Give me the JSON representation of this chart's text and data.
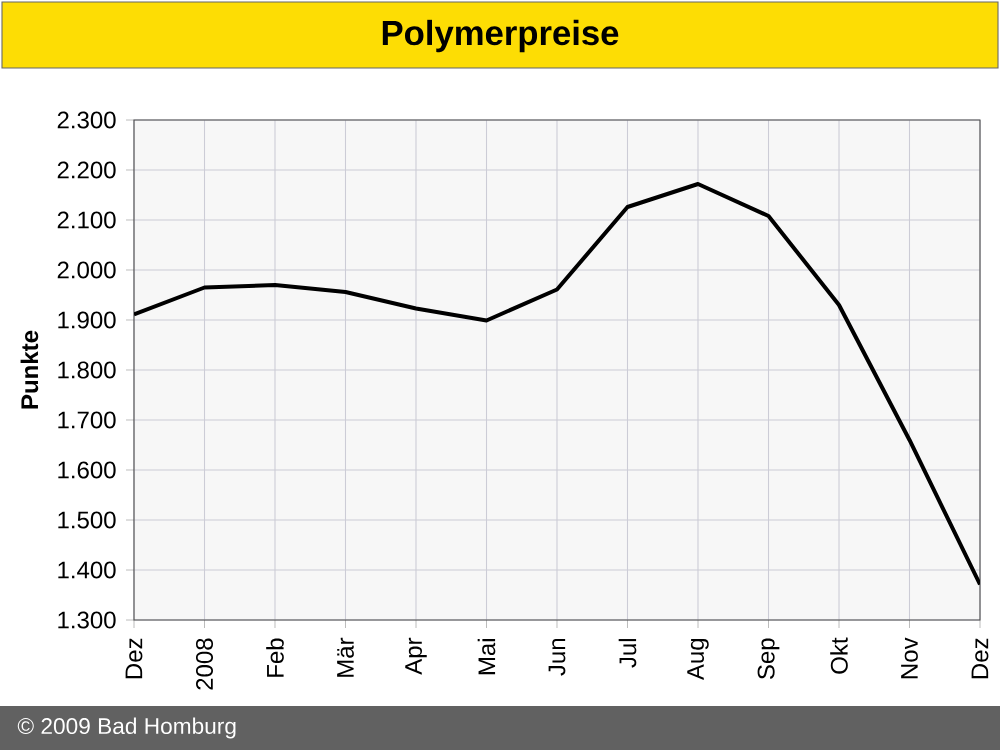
{
  "chart_data": {
    "type": "line",
    "title": "Polymerpreise",
    "ylabel": "Punkte",
    "categories": [
      "Dez",
      "2008",
      "Feb",
      "Mär",
      "Apr",
      "Mai",
      "Jun",
      "Jul",
      "Aug",
      "Sep",
      "Okt",
      "Nov",
      "Dez"
    ],
    "series": [
      {
        "color": "#000000",
        "values": [
          1911,
          1965,
          1970,
          1956,
          1923,
          1899,
          1961,
          2126,
          2172,
          2108,
          1930,
          1660,
          1371
        ]
      }
    ],
    "ylim": [
      1300,
      2300
    ],
    "yticks": [
      {
        "value": 1300,
        "label": "1.300"
      },
      {
        "value": 1400,
        "label": "1.400"
      },
      {
        "value": 1500,
        "label": "1.500"
      },
      {
        "value": 1600,
        "label": "1.600"
      },
      {
        "value": 1700,
        "label": "1.700"
      },
      {
        "value": 1800,
        "label": "1.800"
      },
      {
        "value": 1900,
        "label": "1.900"
      },
      {
        "value": 2000,
        "label": "2.000"
      },
      {
        "value": 2100,
        "label": "2.100"
      },
      {
        "value": 2200,
        "label": "2.200"
      },
      {
        "value": 2300,
        "label": "2.300"
      }
    ],
    "grid": true,
    "marker": "none",
    "line_style": "solid",
    "annotations": [
      "© 2009 Bad Homburg"
    ]
  }
}
